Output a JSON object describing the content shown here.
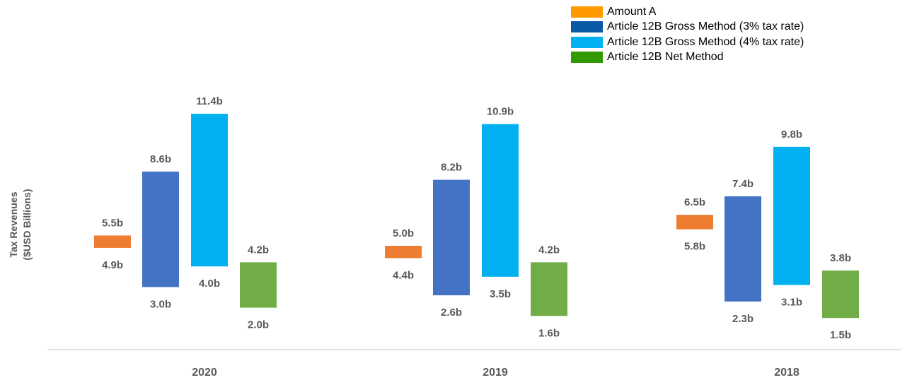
{
  "chart_data": {
    "type": "bar",
    "subtype": "floating-range",
    "ylabel_lines": [
      "Tax Revenues",
      "($USD Billions)"
    ],
    "categories": [
      "2020",
      "2019",
      "2018"
    ],
    "series": [
      {
        "name": "Amount A",
        "legend_color": "#ff9900",
        "bar_color": "#ed7d31",
        "ranges": [
          [
            4.9,
            5.5
          ],
          [
            4.4,
            5.0
          ],
          [
            5.8,
            6.5
          ]
        ],
        "high_labels": [
          "5.5b",
          "5.0b",
          "6.5b"
        ],
        "low_labels": [
          "4.9b",
          "4.4b",
          "5.8b"
        ]
      },
      {
        "name": "Article 12B Gross Method (3% tax rate)",
        "legend_color": "#0b5aa8",
        "bar_color": "#4472c4",
        "ranges": [
          [
            3.0,
            8.6
          ],
          [
            2.6,
            8.2
          ],
          [
            2.3,
            7.4
          ]
        ],
        "high_labels": [
          "8.6b",
          "8.2b",
          "7.4b"
        ],
        "low_labels": [
          "3.0b",
          "2.6b",
          "2.3b"
        ]
      },
      {
        "name": "Article 12B Gross Method (4% tax rate)",
        "legend_color": "#00b0f0",
        "bar_color": "#00b0f0",
        "ranges": [
          [
            4.0,
            11.4
          ],
          [
            3.5,
            10.9
          ],
          [
            3.1,
            9.8
          ]
        ],
        "high_labels": [
          "11.4b",
          "10.9b",
          "9.8b"
        ],
        "low_labels": [
          "4.0b",
          "3.5b",
          "3.1b"
        ]
      },
      {
        "name": "Article 12B Net Method",
        "legend_color": "#339900",
        "bar_color": "#70ad47",
        "ranges": [
          [
            2.0,
            4.2
          ],
          [
            1.6,
            4.2
          ],
          [
            1.5,
            3.8
          ]
        ],
        "high_labels": [
          "4.2b",
          "4.2b",
          "3.8b"
        ],
        "low_labels": [
          "2.0b",
          "1.6b",
          "1.5b"
        ]
      }
    ],
    "grid": false,
    "legend_position": "top-right"
  }
}
